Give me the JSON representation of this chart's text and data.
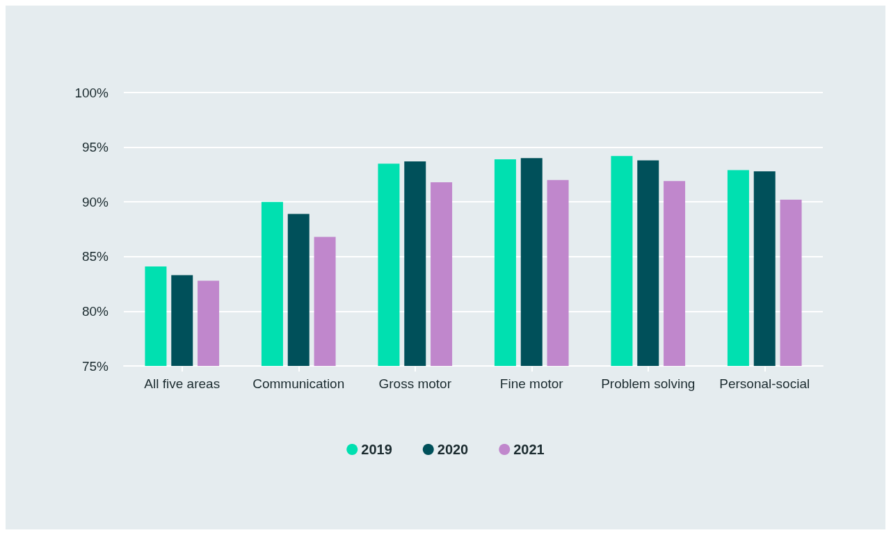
{
  "chart_data": {
    "type": "bar",
    "categories": [
      "All five areas",
      "Communication",
      "Gross motor",
      "Fine motor",
      "Problem solving",
      "Personal-social"
    ],
    "series": [
      {
        "name": "2019",
        "color": "#00e0b0",
        "values": [
          84.1,
          90.0,
          93.5,
          93.9,
          94.2,
          92.9
        ]
      },
      {
        "name": "2020",
        "color": "#00505a",
        "values": [
          83.3,
          88.9,
          93.7,
          94.0,
          93.8,
          92.8
        ]
      },
      {
        "name": "2021",
        "color": "#c087cc",
        "values": [
          82.8,
          86.8,
          91.8,
          92.0,
          91.9,
          90.2
        ]
      }
    ],
    "ylim": [
      75,
      100
    ],
    "yticks": [
      {
        "value": 75,
        "label": "75%"
      },
      {
        "value": 80,
        "label": "80%"
      },
      {
        "value": 85,
        "label": "85%"
      },
      {
        "value": 90,
        "label": "90%"
      },
      {
        "value": 95,
        "label": "95%"
      },
      {
        "value": 100,
        "label": "100%"
      }
    ],
    "grid": "y",
    "legend": "bottom"
  }
}
